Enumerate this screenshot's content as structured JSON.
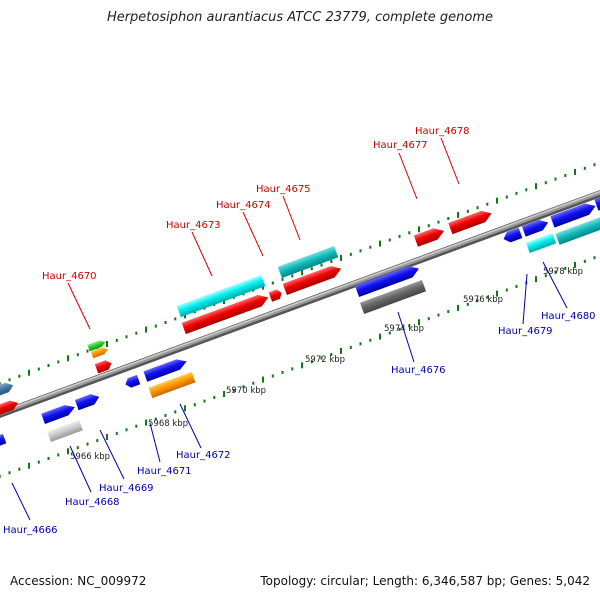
{
  "title": "Herpetosiphon aurantiacus ATCC 23779, complete genome",
  "footer": {
    "accession": "Accession: NC_009972",
    "info": "Topology: circular; Length: 6,346,587 bp; Genes: 5,042"
  },
  "colors": {
    "top_label": "#cc0000",
    "bottom_label": "#0000aa",
    "tick": "#117711",
    "backbone": "#888888"
  },
  "kbp_labels": [
    "5966 kbp",
    "5968 kbp",
    "5970 kbp",
    "5972 kbp",
    "5974 kbp",
    "5976 kbp",
    "5978 kbp"
  ],
  "top_labels": [
    "Haur_4670",
    "Haur_4673",
    "Haur_4674",
    "Haur_4675",
    "Haur_4677",
    "Haur_4678"
  ],
  "bottom_labels": [
    "Haur_4666",
    "Haur_4668",
    "Haur_4669",
    "Haur_4671",
    "Haur_4672",
    "Haur_4676",
    "Haur_4679",
    "Haur_4680"
  ]
}
